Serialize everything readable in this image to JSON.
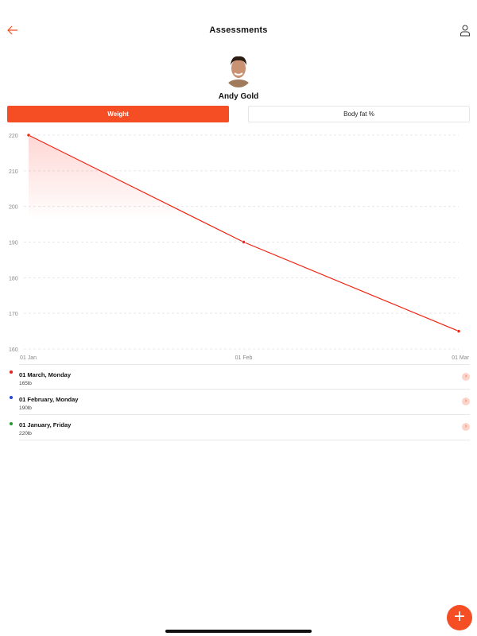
{
  "header": {
    "title": "Assessments",
    "back_icon": "arrow-left-icon",
    "profile_icon": "user-icon"
  },
  "user": {
    "name": "Andy Gold"
  },
  "tabs": [
    {
      "label": "Weight",
      "active": true
    },
    {
      "label": "Body fat %",
      "active": false
    }
  ],
  "colors": {
    "accent": "#f54d24",
    "line": "#f5200f"
  },
  "chart_data": {
    "type": "area",
    "x": [
      "01 Jan",
      "01 Feb",
      "01 Mar"
    ],
    "values": [
      220,
      190,
      165
    ],
    "ylim": [
      160,
      220
    ],
    "yticks": [
      160,
      170,
      180,
      190,
      200,
      210,
      220
    ],
    "grid": true
  },
  "entries": [
    {
      "date": "01 March, Monday",
      "value": "165lb",
      "dot_color": "#e8201a"
    },
    {
      "date": "01 February, Monday",
      "value": "190lb",
      "dot_color": "#2447d6"
    },
    {
      "date": "01 January, Friday",
      "value": "220lb",
      "dot_color": "#1f9b2a"
    }
  ],
  "fab": {
    "label": "+"
  }
}
